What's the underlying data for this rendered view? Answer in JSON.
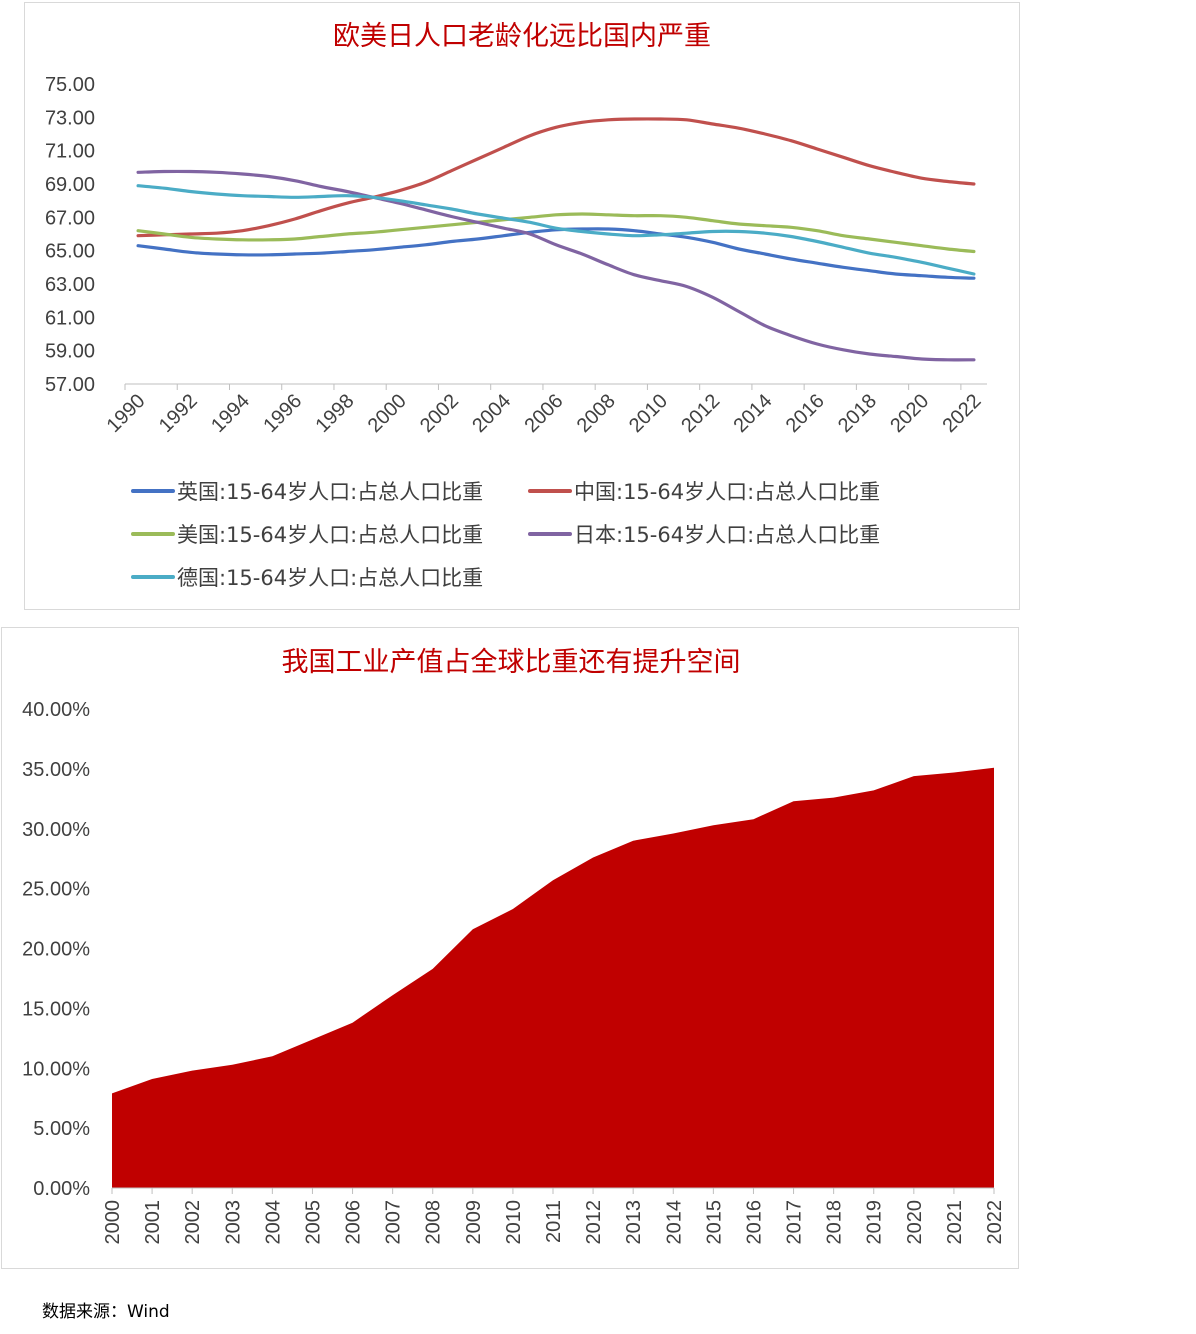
{
  "source_note": "数据来源：Wind",
  "chart_data": [
    {
      "type": "line",
      "title": "欧美日人口老龄化远比国内严重",
      "xlabel": "",
      "ylabel": "",
      "x": [
        1990,
        1991,
        1992,
        1993,
        1994,
        1995,
        1996,
        1997,
        1998,
        1999,
        2000,
        2001,
        2002,
        2003,
        2004,
        2005,
        2006,
        2007,
        2008,
        2009,
        2010,
        2011,
        2012,
        2013,
        2014,
        2015,
        2016,
        2017,
        2018,
        2019,
        2020,
        2021,
        2022
      ],
      "x_tick_labels": [
        "1990",
        "1992",
        "1994",
        "1996",
        "1998",
        "2000",
        "2002",
        "2004",
        "2006",
        "2008",
        "2010",
        "2012",
        "2014",
        "2016",
        "2018",
        "2020",
        "2022"
      ],
      "ylim": [
        57,
        75
      ],
      "y_tick_labels": [
        "75.00",
        "73.00",
        "71.00",
        "69.00",
        "67.00",
        "65.00",
        "63.00",
        "61.00",
        "59.00",
        "57.00"
      ],
      "grid": false,
      "legend_position": "bottom",
      "series": [
        {
          "name": "英国:15-64岁人口:占总人口比重",
          "color": "#4472c4",
          "values": [
            65.3,
            65.1,
            64.9,
            64.8,
            64.75,
            64.75,
            64.8,
            64.85,
            64.95,
            65.05,
            65.2,
            65.35,
            65.55,
            65.7,
            65.9,
            66.1,
            66.25,
            66.3,
            66.3,
            66.2,
            66.0,
            65.8,
            65.5,
            65.1,
            64.8,
            64.5,
            64.25,
            64.0,
            63.8,
            63.6,
            63.5,
            63.4,
            63.35
          ]
        },
        {
          "name": "中国:15-64岁人口:占总人口比重",
          "color": "#c0504d",
          "values": [
            65.9,
            65.95,
            66.0,
            66.05,
            66.2,
            66.5,
            66.9,
            67.4,
            67.85,
            68.2,
            68.6,
            69.1,
            69.8,
            70.5,
            71.2,
            71.9,
            72.4,
            72.7,
            72.85,
            72.9,
            72.9,
            72.85,
            72.6,
            72.35,
            72.0,
            71.6,
            71.1,
            70.6,
            70.1,
            69.7,
            69.35,
            69.15,
            69.0
          ]
        },
        {
          "name": "美国:15-64岁人口:占总人口比重",
          "color": "#9bbb59",
          "values": [
            66.2,
            66.0,
            65.8,
            65.7,
            65.65,
            65.65,
            65.7,
            65.85,
            66.0,
            66.1,
            66.25,
            66.4,
            66.55,
            66.7,
            66.85,
            67.0,
            67.15,
            67.2,
            67.15,
            67.1,
            67.1,
            67.0,
            66.8,
            66.6,
            66.5,
            66.4,
            66.2,
            65.9,
            65.7,
            65.5,
            65.3,
            65.1,
            64.95
          ]
        },
        {
          "name": "日本:15-64岁人口:占总人口比重",
          "color": "#8064a2",
          "values": [
            69.7,
            69.75,
            69.75,
            69.7,
            69.6,
            69.45,
            69.2,
            68.85,
            68.55,
            68.2,
            67.85,
            67.45,
            67.05,
            66.7,
            66.35,
            66.0,
            65.35,
            64.8,
            64.15,
            63.55,
            63.2,
            62.85,
            62.2,
            61.35,
            60.5,
            59.9,
            59.4,
            59.05,
            58.8,
            58.65,
            58.5,
            58.45,
            58.45
          ]
        },
        {
          "name": "德国:15-64岁人口:占总人口比重",
          "color": "#4bacc6",
          "values": [
            68.9,
            68.75,
            68.55,
            68.4,
            68.3,
            68.25,
            68.2,
            68.25,
            68.3,
            68.2,
            68.0,
            67.75,
            67.5,
            67.2,
            66.95,
            66.7,
            66.35,
            66.15,
            66.0,
            65.9,
            65.95,
            66.05,
            66.15,
            66.15,
            66.05,
            65.85,
            65.55,
            65.2,
            64.85,
            64.6,
            64.3,
            63.95,
            63.6
          ]
        }
      ]
    },
    {
      "type": "area",
      "title": "我国工业产值占全球比重还有提升空间",
      "xlabel": "",
      "ylabel": "",
      "x": [
        "2000",
        "2001",
        "2002",
        "2003",
        "2004",
        "2005",
        "2006",
        "2007",
        "2008",
        "2009",
        "2010",
        "2011",
        "2012",
        "2013",
        "2014",
        "2015",
        "2016",
        "2017",
        "2018",
        "2019",
        "2020",
        "2021",
        "2022"
      ],
      "ylim": [
        0,
        40
      ],
      "y_tick_labels": [
        "40.00%",
        "35.00%",
        "30.00%",
        "25.00%",
        "20.00%",
        "15.00%",
        "10.00%",
        "5.00%",
        "0.00%"
      ],
      "grid": false,
      "legend_position": "none",
      "series": [
        {
          "color": "#c00000",
          "values": [
            7.9,
            9.1,
            9.8,
            10.3,
            11.0,
            12.4,
            13.8,
            16.1,
            18.3,
            21.6,
            23.3,
            25.7,
            27.6,
            29.0,
            29.6,
            30.3,
            30.8,
            32.3,
            32.6,
            33.2,
            34.4,
            34.7,
            35.1
          ]
        }
      ]
    }
  ]
}
